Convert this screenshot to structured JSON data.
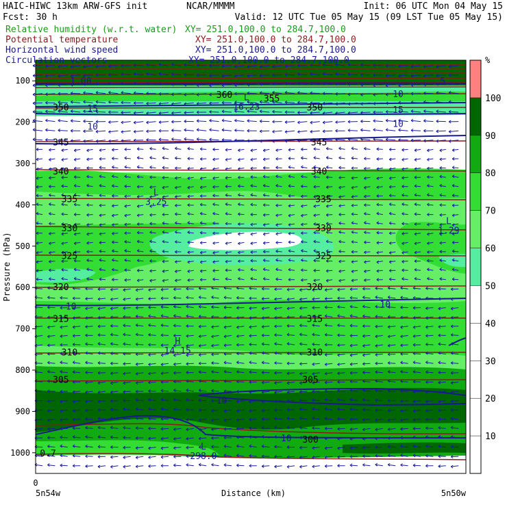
{
  "header": {
    "model": "HAIC-HIWC 13km ARW-GFS init",
    "org": "NCAR/MMMM",
    "init": "Init: 06 UTC Mon 04 May 15",
    "fcst_label": "Fcst:",
    "fcst_value": "30 h",
    "valid": "Valid: 12 UTC Tue 05 May 15 (09 LST Tue 05 May 15)"
  },
  "fields": [
    {
      "name": "Relative humidity (w.r.t. water)",
      "xy": "XY= 251.0,100.0 to 284.7,100.0",
      "color": "#1a9a1a"
    },
    {
      "name": "Potential temperature",
      "xy": "XY= 251.0,100.0 to 284.7,100.0",
      "color": "#8b1a1a"
    },
    {
      "name": "Horizontal wind speed",
      "xy": "XY= 251.0,100.0 to 284.7,100.0",
      "color": "#1a1a8b"
    },
    {
      "name": "Circulation vectors",
      "xy": "XY= 251.0,100.0 to 284.7,100.0",
      "color": "#1a1aa0"
    }
  ],
  "chart_data": {
    "type": "cross-section",
    "xlabel": "Distance (km)",
    "ylabel": "Pressure (hPa)",
    "x_origin_label": "0",
    "x_left_label": "5n54w",
    "x_right_label": "5n50w",
    "y_ticks": [
      100,
      200,
      300,
      400,
      500,
      600,
      700,
      800,
      900,
      1000
    ],
    "ylim": [
      1050,
      50
    ],
    "colorbar": {
      "unit": "%",
      "labels": [
        "10",
        "20",
        "30",
        "40",
        "50",
        "60",
        "70",
        "80",
        "90",
        "100"
      ],
      "bands": [
        {
          "from": 0,
          "to": 50,
          "color": "#ffffff"
        },
        {
          "from": 50,
          "to": 60,
          "color": "#55eea0"
        },
        {
          "from": 60,
          "to": 70,
          "color": "#66ee66"
        },
        {
          "from": 70,
          "to": 80,
          "color": "#33dd33"
        },
        {
          "from": 80,
          "to": 90,
          "color": "#11aa11"
        },
        {
          "from": 90,
          "to": 100,
          "color": "#006600"
        },
        {
          "from": 100,
          "to": 110,
          "color": "#ff8080"
        }
      ]
    },
    "theta_labels": [
      {
        "text": "360",
        "p": 133,
        "x": 0.42
      },
      {
        "text": "355",
        "p": 142,
        "x": 0.53
      },
      {
        "text": "350",
        "p": 163,
        "x": 0.04
      },
      {
        "text": "350",
        "p": 163,
        "x": 0.63
      },
      {
        "text": "345",
        "p": 248,
        "x": 0.04
      },
      {
        "text": "345",
        "p": 248,
        "x": 0.64
      },
      {
        "text": "340",
        "p": 318,
        "x": 0.04
      },
      {
        "text": "340",
        "p": 318,
        "x": 0.64
      },
      {
        "text": "335",
        "p": 385,
        "x": 0.06
      },
      {
        "text": "335",
        "p": 385,
        "x": 0.65
      },
      {
        "text": "330",
        "p": 456,
        "x": 0.06
      },
      {
        "text": "330",
        "p": 456,
        "x": 0.65
      },
      {
        "text": "325",
        "p": 523,
        "x": 0.06
      },
      {
        "text": "325",
        "p": 523,
        "x": 0.65
      },
      {
        "text": "320",
        "p": 598,
        "x": 0.04
      },
      {
        "text": "320",
        "p": 598,
        "x": 0.63
      },
      {
        "text": "315",
        "p": 675,
        "x": 0.04
      },
      {
        "text": "315",
        "p": 675,
        "x": 0.63
      },
      {
        "text": "310",
        "p": 756,
        "x": 0.06
      },
      {
        "text": "310",
        "p": 756,
        "x": 0.63
      },
      {
        "text": "305",
        "p": 822,
        "x": 0.04
      },
      {
        "text": "305",
        "p": 822,
        "x": 0.62
      },
      {
        "text": "300",
        "p": 967,
        "x": 0.62
      },
      {
        "text": "0.7",
        "p": 1000,
        "x": 0.01
      }
    ],
    "wind_labels": [
      {
        "text": "1.00",
        "p": 100,
        "x": 0.08
      },
      {
        "text": "15",
        "p": 166,
        "x": 0.12
      },
      {
        "text": "10",
        "p": 210,
        "x": 0.12
      },
      {
        "text": "10",
        "p": 131,
        "x": 0.83
      },
      {
        "text": "15",
        "p": 169,
        "x": 0.83
      },
      {
        "text": "10",
        "p": 203,
        "x": 0.83
      },
      {
        "text": "10",
        "p": 645,
        "x": 0.07
      },
      {
        "text": "10",
        "p": 640,
        "x": 0.8
      },
      {
        "text": "10",
        "p": 873,
        "x": 0.42
      },
      {
        "text": "10",
        "p": 964,
        "x": 0.57
      },
      {
        "text": "5",
        "p": 100,
        "x": 0.94
      }
    ],
    "extrema": [
      {
        "symbol": "L",
        "value": "16.23",
        "p": 160,
        "x": 0.49
      },
      {
        "symbol": "L",
        "value": "3.25",
        "p": 390,
        "x": 0.28
      },
      {
        "symbol": "L",
        "value": "1.29",
        "p": 460,
        "x": 0.96
      },
      {
        "symbol": "H",
        "value": "14.15",
        "p": 750,
        "x": 0.33
      },
      {
        "symbol": "L",
        "value": "298.0",
        "p": 1005,
        "x": 0.39
      }
    ]
  }
}
